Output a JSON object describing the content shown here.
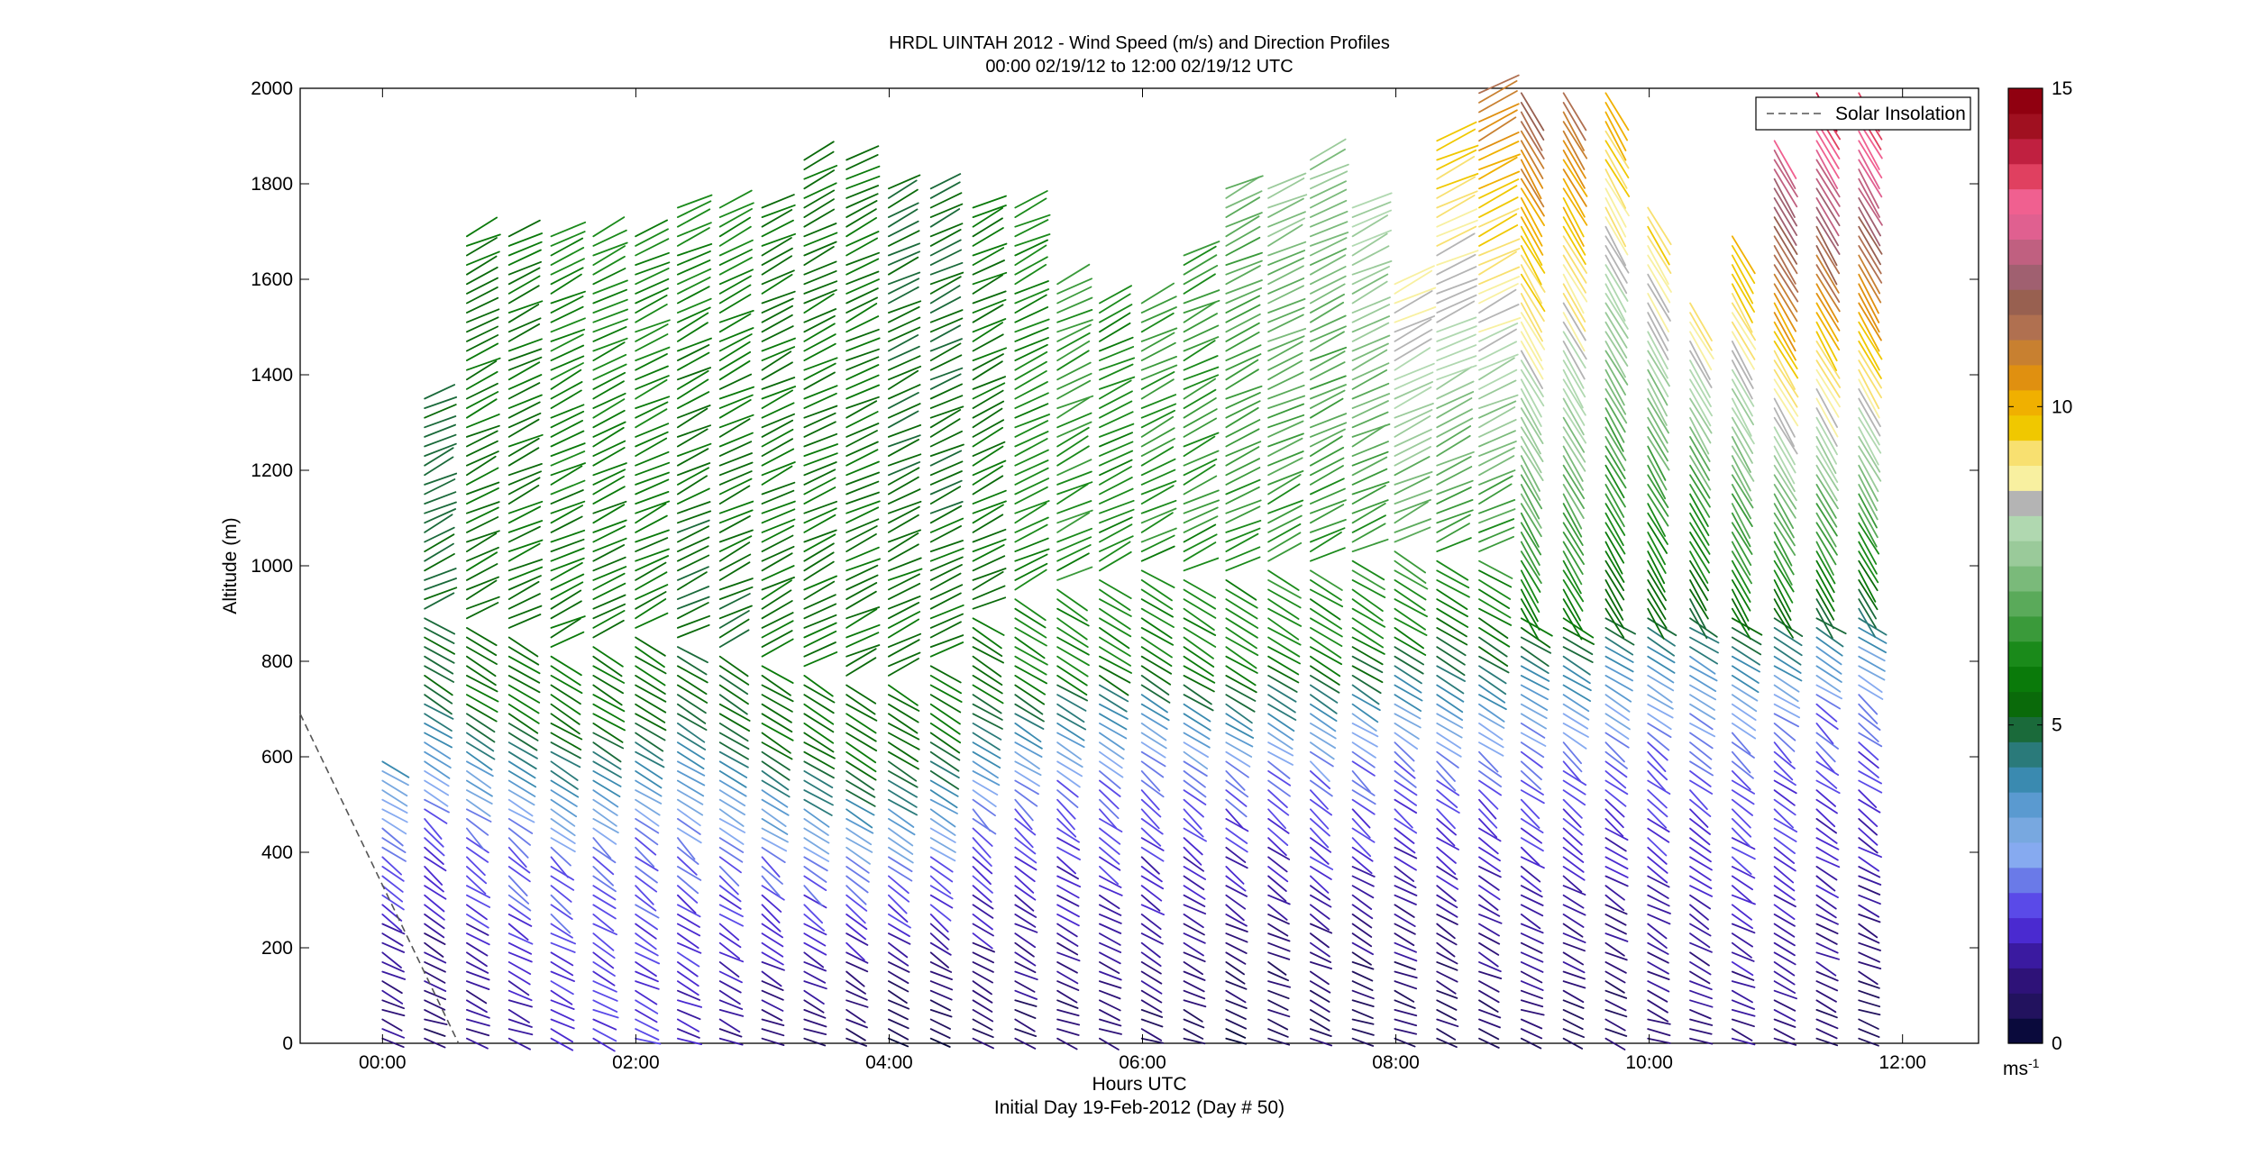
{
  "chart_data": {
    "type": "wind-barb-profile",
    "title_line1": "HRDL UINTAH 2012 - Wind Speed (m/s) and Direction Profiles",
    "title_line2": "00:00 02/19/12 to 12:00 02/19/12  UTC",
    "xlabel": "Hours UTC",
    "xlabel2": "Initial Day 19-Feb-2012 (Day # 50)",
    "ylabel": "Altitude (m)",
    "xlim_hours": [
      -0.65,
      12.6
    ],
    "ylim": [
      0,
      2000
    ],
    "x_ticks": [
      {
        "h": 0,
        "label": "00:00"
      },
      {
        "h": 2,
        "label": "02:00"
      },
      {
        "h": 4,
        "label": "04:00"
      },
      {
        "h": 6,
        "label": "06:00"
      },
      {
        "h": 8,
        "label": "08:00"
      },
      {
        "h": 10,
        "label": "10:00"
      },
      {
        "h": 12,
        "label": "12:00"
      }
    ],
    "y_ticks": [
      0,
      200,
      400,
      600,
      800,
      1000,
      1200,
      1400,
      1600,
      1800,
      2000
    ],
    "legend": {
      "entries": [
        "Solar Insolation"
      ],
      "placement": "top-right",
      "line_style": "dashed",
      "line_color": "#555555"
    },
    "colorbar": {
      "unit": "ms",
      "unit_exponent": "-1",
      "range": [
        0,
        15
      ],
      "ticks": [
        0,
        5,
        10,
        15
      ],
      "colors": [
        "#0a0a3c",
        "#22125e",
        "#2e1278",
        "#3a1aa0",
        "#4a2ad0",
        "#5a4ae8",
        "#6a7ae8",
        "#86aaf0",
        "#78a8e0",
        "#5a9ad0",
        "#3a8ab0",
        "#2a7a7a",
        "#1a6a3a",
        "#0a6a0a",
        "#0a7a0a",
        "#1a8a1a",
        "#3a9a3a",
        "#5aaa5a",
        "#7aba7a",
        "#9aca9a",
        "#b0d8b0",
        "#b4b4b4",
        "#f8f0a0",
        "#f8e070",
        "#f0c800",
        "#f0b000",
        "#e09010",
        "#c88030",
        "#b07050",
        "#986050",
        "#a06070",
        "#c06080",
        "#e06090",
        "#f06090",
        "#e04060",
        "#c02040",
        "#a01020",
        "#900010"
      ]
    },
    "solar_insolation": {
      "hours": [
        -0.65,
        0.6
      ],
      "altitude": [
        690,
        0
      ]
    },
    "profiles": {
      "start_hour": 0.0,
      "step_hours": 0.333,
      "count": 36,
      "altitude_step_m": 20,
      "max_altitude_m": [
        600,
        1350,
        1700,
        1700,
        1700,
        1700,
        1700,
        1750,
        1750,
        1750,
        1850,
        1850,
        1800,
        1800,
        1750,
        1750,
        1600,
        1550,
        1550,
        1650,
        1800,
        1800,
        1850,
        1750,
        1600,
        1900,
        2000,
        2000,
        2000,
        2000,
        1750,
        1550,
        1700,
        1900,
        2000,
        2000
      ],
      "surface_wind_ms": [
        1.0,
        0.8,
        1.2,
        1.5,
        1.8,
        2.0,
        1.8,
        1.5,
        1.2,
        1.0,
        0.8,
        0.6,
        0.5,
        0.6,
        0.8,
        0.8,
        0.8,
        0.8,
        0.8,
        0.7,
        0.5,
        0.5,
        0.7,
        0.6,
        0.6,
        0.6,
        0.8,
        0.9,
        0.7,
        0.6,
        0.9,
        1.0,
        1.2,
        1.0,
        0.8,
        0.6
      ],
      "jet_wind_ms": [
        5.0,
        5.0,
        5.5,
        5.5,
        5.5,
        5.5,
        5.5,
        5.0,
        5.0,
        5.5,
        5.5,
        5.5,
        5.5,
        5.5,
        5.5,
        6.0,
        6.0,
        6.0,
        6.0,
        6.0,
        6.0,
        6.0,
        6.0,
        6.0,
        6.0,
        5.5,
        5.5,
        5.5,
        5.5,
        5.0,
        5.0,
        5.0,
        5.5,
        5.5,
        5.5,
        5.5
      ],
      "top_wind_ms": [
        5,
        5,
        5.5,
        5.5,
        6,
        6,
        6,
        6,
        6,
        5.5,
        5.5,
        5.5,
        5,
        5,
        5.5,
        6,
        6.5,
        6,
        6.5,
        6.5,
        7,
        7.5,
        7.5,
        8,
        9,
        10,
        11,
        11.5,
        11,
        10,
        9.5,
        9,
        10,
        13,
        14,
        14
      ],
      "transition_altitude_m": [
        460,
        500,
        480,
        460,
        420,
        440,
        460,
        450,
        420,
        400,
        380,
        360,
        360,
        400,
        500,
        540,
        560,
        580,
        600,
        580,
        580,
        600,
        600,
        620,
        640,
        620,
        620,
        640,
        640,
        650,
        660,
        660,
        660,
        680,
        720,
        740
      ]
    }
  }
}
